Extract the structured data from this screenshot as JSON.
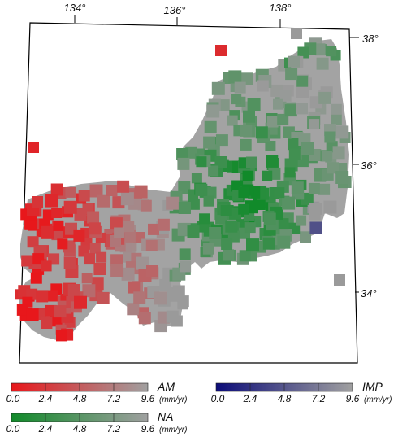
{
  "map": {
    "lon_ticks": [
      {
        "label": "134°",
        "lon": 134
      },
      {
        "label": "136°",
        "lon": 136
      },
      {
        "label": "138°",
        "lon": 138
      }
    ],
    "lat_ticks": [
      {
        "label": "38°",
        "lat": 38
      },
      {
        "label": "36°",
        "lat": 36
      },
      {
        "label": "34°",
        "lat": 34
      }
    ],
    "colors": {
      "AM_strong": "#e8171b",
      "NA_strong": "#118a2a",
      "IMP_strong": "#0c0c78",
      "neutral": "#9a9a9a",
      "land": "#a3a3a3",
      "frame": "#000000"
    }
  },
  "colorbars": [
    {
      "id": "AM",
      "name": "AM",
      "unit": "(mm/yr)",
      "ticks": [
        "0.0",
        "2.4",
        "4.8",
        "7.2",
        "9.6"
      ],
      "range": [
        0,
        9.6
      ],
      "color_from": "#e8171b",
      "color_to": "#a0a0a0"
    },
    {
      "id": "IMP",
      "name": "IMP",
      "unit": "(mm/yr)",
      "ticks": [
        "0.0",
        "2.4",
        "4.8",
        "7.2",
        "9.6"
      ],
      "range": [
        0,
        9.6
      ],
      "color_from": "#0c0c78",
      "color_to": "#a0a0a0"
    },
    {
      "id": "NA",
      "name": "NA",
      "unit": "(mm/yr)",
      "ticks": [
        "0.0",
        "2.4",
        "4.8",
        "7.2",
        "9.6"
      ],
      "range": [
        0,
        9.6
      ],
      "color_from": "#118a2a",
      "color_to": "#a0a0a0"
    }
  ]
}
